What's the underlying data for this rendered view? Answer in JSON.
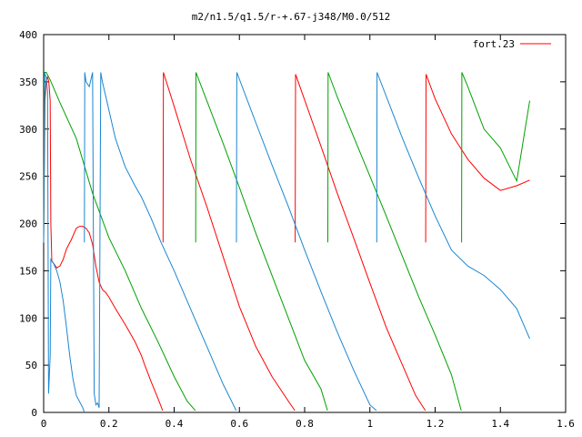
{
  "chart_data": {
    "type": "line",
    "title": "m2/n1.5/q1.5/r-+.67-j348/M0.0/512",
    "xlabel": "",
    "ylabel": "",
    "xlim": [
      0,
      1.6
    ],
    "ylim": [
      0,
      400
    ],
    "x_ticks": [
      "0",
      "0.2",
      "0.4",
      "0.6",
      "0.8",
      "1",
      "1.2",
      "1.4",
      "1.6"
    ],
    "y_ticks": [
      "0",
      "50",
      "100",
      "150",
      "200",
      "250",
      "300",
      "350",
      "400"
    ],
    "grid": false,
    "legend_position": "top-right",
    "legend": [
      {
        "label": "fort.23",
        "color": "#ff0000"
      }
    ],
    "series": [
      {
        "color": "#ff0000",
        "segments": [
          [
            [
              0.0,
              180
            ],
            [
              0.004,
              330
            ],
            [
              0.008,
              352
            ],
            [
              0.012,
              355
            ],
            [
              0.016,
              350
            ],
            [
              0.02,
              330
            ],
            [
              0.022,
              200
            ],
            [
              0.025,
              160
            ],
            [
              0.03,
              158
            ],
            [
              0.04,
              153
            ],
            [
              0.05,
              155
            ],
            [
              0.06,
              162
            ],
            [
              0.07,
              173
            ],
            [
              0.085,
              183
            ],
            [
              0.1,
              195
            ],
            [
              0.11,
              197
            ],
            [
              0.12,
              197
            ],
            [
              0.13,
              195
            ],
            [
              0.14,
              190
            ],
            [
              0.15,
              178
            ],
            [
              0.16,
              155
            ],
            [
              0.17,
              138
            ],
            [
              0.18,
              130
            ],
            [
              0.19,
              127
            ],
            [
              0.2,
              122
            ],
            [
              0.22,
              110
            ],
            [
              0.25,
              93
            ],
            [
              0.28,
              75
            ],
            [
              0.3,
              60
            ],
            [
              0.31,
              50
            ],
            [
              0.33,
              32
            ],
            [
              0.35,
              15
            ],
            [
              0.365,
              2
            ]
          ],
          [
            [
              0.366,
              180
            ],
            [
              0.367,
              360
            ],
            [
              0.4,
              324
            ],
            [
              0.45,
              268
            ],
            [
              0.5,
              218
            ],
            [
              0.55,
              165
            ],
            [
              0.6,
              112
            ],
            [
              0.65,
              70
            ],
            [
              0.7,
              38
            ],
            [
              0.75,
              12
            ],
            [
              0.77,
              2
            ]
          ],
          [
            [
              0.771,
              180
            ],
            [
              0.772,
              358
            ],
            [
              0.85,
              282
            ],
            [
              0.9,
              232
            ],
            [
              0.95,
              185
            ],
            [
              1.0,
              137
            ],
            [
              1.05,
              90
            ],
            [
              1.1,
              50
            ],
            [
              1.14,
              18
            ],
            [
              1.17,
              2
            ]
          ],
          [
            [
              1.171,
              180
            ],
            [
              1.172,
              358
            ],
            [
              1.2,
              332
            ],
            [
              1.25,
              295
            ],
            [
              1.3,
              268
            ],
            [
              1.35,
              248
            ],
            [
              1.4,
              235
            ],
            [
              1.45,
              240
            ],
            [
              1.49,
              246
            ]
          ]
        ]
      },
      {
        "color": "#00a000",
        "segments": [
          [
            [
              0.0,
              180
            ],
            [
              0.003,
              360
            ],
            [
              0.008,
              360
            ],
            [
              0.02,
              352
            ],
            [
              0.05,
              328
            ],
            [
              0.1,
              290
            ],
            [
              0.15,
              232
            ],
            [
              0.2,
              185
            ],
            [
              0.25,
              150
            ],
            [
              0.3,
              110
            ],
            [
              0.35,
              75
            ],
            [
              0.4,
              38
            ],
            [
              0.44,
              12
            ],
            [
              0.465,
              2
            ]
          ],
          [
            [
              0.466,
              180
            ],
            [
              0.467,
              360
            ],
            [
              0.5,
              330
            ],
            [
              0.55,
              285
            ],
            [
              0.6,
              238
            ],
            [
              0.65,
              190
            ],
            [
              0.7,
              145
            ],
            [
              0.75,
              100
            ],
            [
              0.8,
              55
            ],
            [
              0.85,
              25
            ],
            [
              0.87,
              2
            ]
          ],
          [
            [
              0.871,
              180
            ],
            [
              0.872,
              360
            ],
            [
              0.9,
              334
            ],
            [
              0.95,
              292
            ],
            [
              1.0,
              250
            ],
            [
              1.05,
              208
            ],
            [
              1.1,
              165
            ],
            [
              1.15,
              122
            ],
            [
              1.2,
              82
            ],
            [
              1.25,
              40
            ],
            [
              1.28,
              2
            ]
          ],
          [
            [
              1.281,
              180
            ],
            [
              1.282,
              360
            ],
            [
              1.3,
              345
            ],
            [
              1.35,
              300
            ],
            [
              1.4,
              280
            ],
            [
              1.45,
              245
            ],
            [
              1.49,
              330
            ]
          ]
        ]
      },
      {
        "color": "#1a86d0",
        "segments": [
          [
            [
              0.0,
              180
            ],
            [
              0.002,
              360
            ],
            [
              0.008,
              355
            ],
            [
              0.012,
              340
            ],
            [
              0.015,
              20
            ],
            [
              0.02,
              60
            ],
            [
              0.022,
              162
            ],
            [
              0.03,
              158
            ],
            [
              0.04,
              150
            ],
            [
              0.05,
              138
            ],
            [
              0.06,
              118
            ],
            [
              0.07,
              90
            ],
            [
              0.08,
              60
            ],
            [
              0.09,
              35
            ],
            [
              0.1,
              18
            ],
            [
              0.12,
              5
            ],
            [
              0.125,
              0
            ]
          ],
          [
            [
              0.125,
              180
            ],
            [
              0.126,
              360
            ],
            [
              0.13,
              350
            ],
            [
              0.14,
              345
            ],
            [
              0.15,
              360
            ],
            [
              0.155,
              20
            ],
            [
              0.16,
              8
            ],
            [
              0.165,
              10
            ],
            [
              0.17,
              5
            ],
            [
              0.175,
              360
            ],
            [
              0.18,
              350
            ],
            [
              0.19,
              335
            ],
            [
              0.22,
              290
            ],
            [
              0.25,
              260
            ],
            [
              0.28,
              240
            ],
            [
              0.3,
              228
            ],
            [
              0.33,
              205
            ],
            [
              0.36,
              180
            ],
            [
              0.4,
              150
            ],
            [
              0.45,
              110
            ],
            [
              0.5,
              70
            ],
            [
              0.55,
              30
            ],
            [
              0.59,
              2
            ]
          ],
          [
            [
              0.591,
              180
            ],
            [
              0.592,
              360
            ],
            [
              0.65,
              307
            ],
            [
              0.7,
              262
            ],
            [
              0.75,
              218
            ],
            [
              0.8,
              172
            ],
            [
              0.85,
              128
            ],
            [
              0.9,
              85
            ],
            [
              0.95,
              45
            ],
            [
              1.0,
              8
            ],
            [
              1.02,
              2
            ]
          ],
          [
            [
              1.021,
              180
            ],
            [
              1.022,
              360
            ],
            [
              1.1,
              290
            ],
            [
              1.15,
              248
            ],
            [
              1.2,
              208
            ],
            [
              1.25,
              172
            ],
            [
              1.3,
              155
            ],
            [
              1.35,
              145
            ],
            [
              1.4,
              130
            ],
            [
              1.45,
              110
            ],
            [
              1.49,
              78
            ]
          ]
        ]
      }
    ]
  }
}
